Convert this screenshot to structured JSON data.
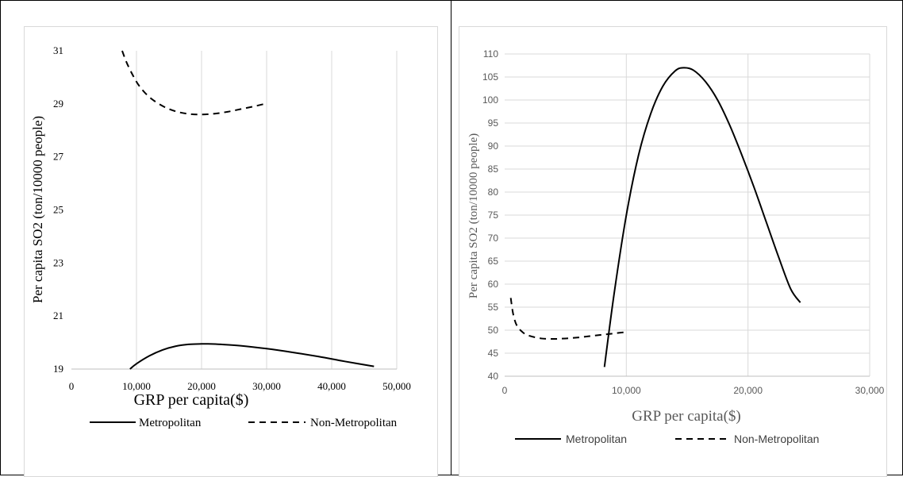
{
  "chart_data": [
    {
      "type": "line",
      "title": "",
      "xlabel": "GRP per capita($)",
      "ylabel": "Per capita SO2 (ton/10000 people)",
      "xlim": [
        0,
        50000
      ],
      "ylim": [
        19,
        31
      ],
      "x_ticks": [
        0,
        10000,
        20000,
        30000,
        40000,
        50000
      ],
      "x_tick_labels": [
        "0",
        "10,000",
        "20,000",
        "30,000",
        "40,000",
        "50,000"
      ],
      "y_ticks": [
        19,
        21,
        23,
        25,
        27,
        29,
        31
      ],
      "y_tick_labels": [
        "19",
        "21",
        "23",
        "25",
        "27",
        "29",
        "31"
      ],
      "grid": "vertical",
      "legend_position": "bottom",
      "series": [
        {
          "name": "Metropolitan",
          "style": "solid",
          "x": [
            9000,
            10000,
            12000,
            14000,
            16000,
            18000,
            20000,
            21000,
            23000,
            26000,
            30000,
            34000,
            38000,
            42000,
            46500
          ],
          "y": [
            19.0,
            19.2,
            19.5,
            19.72,
            19.86,
            19.93,
            19.95,
            19.95,
            19.93,
            19.88,
            19.77,
            19.63,
            19.47,
            19.29,
            19.1
          ]
        },
        {
          "name": "Non-Metropolitan",
          "style": "dashed",
          "x": [
            7800,
            8500,
            9500,
            10500,
            12000,
            14000,
            16000,
            18000,
            20000,
            22000,
            24000,
            26000,
            28000,
            29700
          ],
          "y": [
            31.0,
            30.55,
            30.05,
            29.65,
            29.25,
            28.92,
            28.72,
            28.62,
            28.6,
            28.63,
            28.7,
            28.8,
            28.9,
            29.0
          ]
        }
      ]
    },
    {
      "type": "line",
      "title": "",
      "xlabel": "GRP per capita($)",
      "ylabel": "Per capita SO2 (ton/10000 people)",
      "xlim": [
        0,
        30000
      ],
      "ylim": [
        40,
        110
      ],
      "x_ticks": [
        0,
        10000,
        20000,
        30000
      ],
      "x_tick_labels": [
        "0",
        "10,000",
        "20,000",
        "30,000"
      ],
      "y_ticks": [
        40,
        45,
        50,
        55,
        60,
        65,
        70,
        75,
        80,
        85,
        90,
        95,
        100,
        105,
        110
      ],
      "y_tick_labels": [
        "40",
        "45",
        "50",
        "55",
        "60",
        "65",
        "70",
        "75",
        "80",
        "85",
        "90",
        "95",
        "100",
        "105",
        "110"
      ],
      "grid": "both",
      "legend_position": "bottom",
      "series": [
        {
          "name": "Metropolitan",
          "style": "solid",
          "x": [
            8200,
            9000,
            10000,
            11000,
            12000,
            13000,
            14000,
            14700,
            15500,
            16500,
            17500,
            18500,
            19500,
            20500,
            21500,
            22500,
            23500,
            24300
          ],
          "y": [
            42,
            58,
            75,
            88,
            97,
            103,
            106.3,
            107,
            106.5,
            104,
            100,
            94.5,
            88,
            81,
            73.5,
            66,
            59,
            56
          ]
        },
        {
          "name": "Non-Metropolitan",
          "style": "dashed",
          "x": [
            500,
            700,
            1000,
            1500,
            2000,
            3000,
            4000,
            5000,
            6000,
            7000,
            8000,
            9000,
            10000
          ],
          "y": [
            57,
            53.5,
            51,
            49.5,
            48.8,
            48.2,
            48.1,
            48.2,
            48.4,
            48.7,
            49.0,
            49.3,
            49.6
          ]
        }
      ]
    }
  ]
}
